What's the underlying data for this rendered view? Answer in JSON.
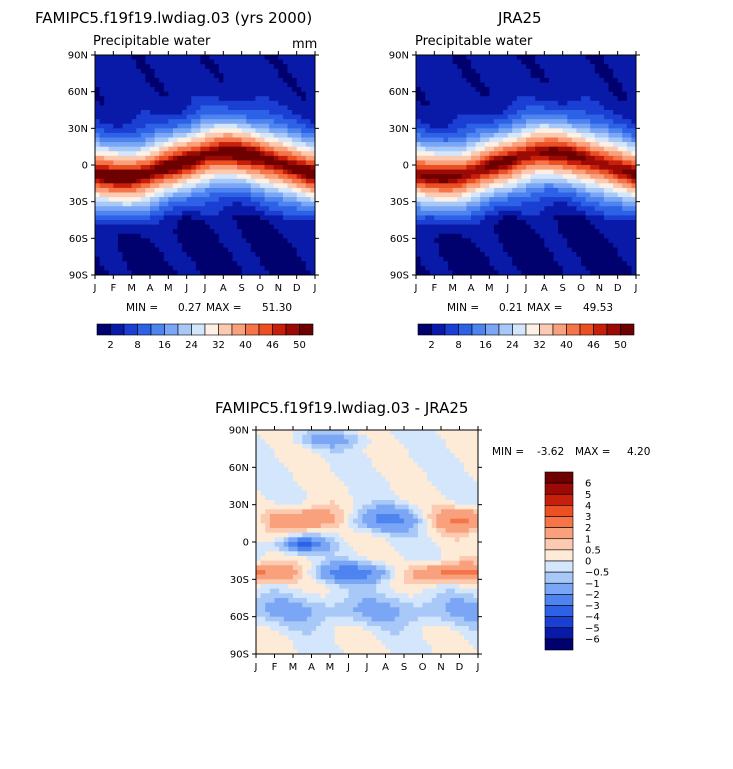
{
  "colors": {
    "pw_scale": [
      "#00006e",
      "#0a1aa8",
      "#1a3fd2",
      "#2e62e6",
      "#4e84ef",
      "#7aa6f5",
      "#a8c8f8",
      "#d3e6fb",
      "#fdf0e4",
      "#fccab0",
      "#f9a07c",
      "#f57548",
      "#ec4f22",
      "#c81e0c",
      "#9c0a05",
      "#6e0000"
    ],
    "diff_scale": [
      "#00006e",
      "#0a1aa8",
      "#1a3fd2",
      "#2e62e6",
      "#4e84ef",
      "#7aa6f5",
      "#a8c8f8",
      "#d3e6fb",
      "#fdebd8",
      "#fccab0",
      "#f9a07c",
      "#f57548",
      "#ec4f22",
      "#c81e0c",
      "#9c0a05",
      "#6e0000"
    ]
  },
  "panels": [
    {
      "title": "FAMIPC5.f19f19.lwdiag.03 (yrs 2000)",
      "subtitle": "Precipitable water",
      "units": "mm",
      "min_label": "MIN =",
      "min": "0.27",
      "max_label": "MAX =",
      "max": "51.30"
    },
    {
      "title": "JRA25",
      "subtitle": "Precipitable water",
      "units": "",
      "min_label": "MIN =",
      "min": "0.21",
      "max_label": "MAX =",
      "max": "49.53"
    },
    {
      "title": "FAMIPC5.f19f19.lwdiag.03 - JRA25",
      "subtitle": "",
      "units": "",
      "min_label": "MIN =",
      "min": "-3.62",
      "max_label": "MAX =",
      "max": "4.20"
    }
  ],
  "chart_data": [
    {
      "type": "heatmap",
      "title": "FAMIPC5.f19f19.lwdiag.03 (yrs 2000)",
      "subtitle": "Precipitable water",
      "units": "mm",
      "x_ticks": [
        "J",
        "F",
        "M",
        "A",
        "M",
        "J",
        "J",
        "A",
        "S",
        "O",
        "N",
        "D",
        "J"
      ],
      "y_ticks": [
        "90N",
        "60N",
        "30N",
        "0",
        "30S",
        "60S",
        "90S"
      ],
      "y_values": [
        90,
        60,
        30,
        0,
        -30,
        -60,
        -90
      ],
      "colorbar_labels": [
        "2",
        "8",
        "16",
        "24",
        "32",
        "40",
        "46",
        "50"
      ],
      "min": 0.27,
      "max": 51.3,
      "model": "model"
    },
    {
      "type": "heatmap",
      "title": "JRA25",
      "subtitle": "Precipitable water",
      "x_ticks": [
        "J",
        "F",
        "M",
        "A",
        "M",
        "J",
        "J",
        "A",
        "S",
        "O",
        "N",
        "D",
        "J"
      ],
      "y_ticks": [
        "90N",
        "60N",
        "30N",
        "0",
        "30S",
        "60S",
        "90S"
      ],
      "y_values": [
        90,
        60,
        30,
        0,
        -30,
        -60,
        -90
      ],
      "colorbar_labels": [
        "2",
        "8",
        "16",
        "24",
        "32",
        "40",
        "46",
        "50"
      ],
      "min": 0.21,
      "max": 49.53,
      "model": "obs"
    },
    {
      "type": "heatmap",
      "title": "FAMIPC5.f19f19.lwdiag.03 - JRA25",
      "x_ticks": [
        "J",
        "F",
        "M",
        "A",
        "M",
        "J",
        "J",
        "A",
        "S",
        "O",
        "N",
        "D",
        "J"
      ],
      "y_ticks": [
        "90N",
        "60N",
        "30N",
        "0",
        "30S",
        "60S",
        "90S"
      ],
      "y_values": [
        90,
        60,
        30,
        0,
        -30,
        -60,
        -90
      ],
      "colorbar_labels": [
        "6",
        "5",
        "4",
        "3",
        "2",
        "1",
        "0.5",
        "0",
        "−0.5",
        "−1",
        "−2",
        "−3",
        "−4",
        "−5",
        "−6"
      ],
      "min": -3.62,
      "max": 4.2,
      "model": "diff"
    }
  ]
}
